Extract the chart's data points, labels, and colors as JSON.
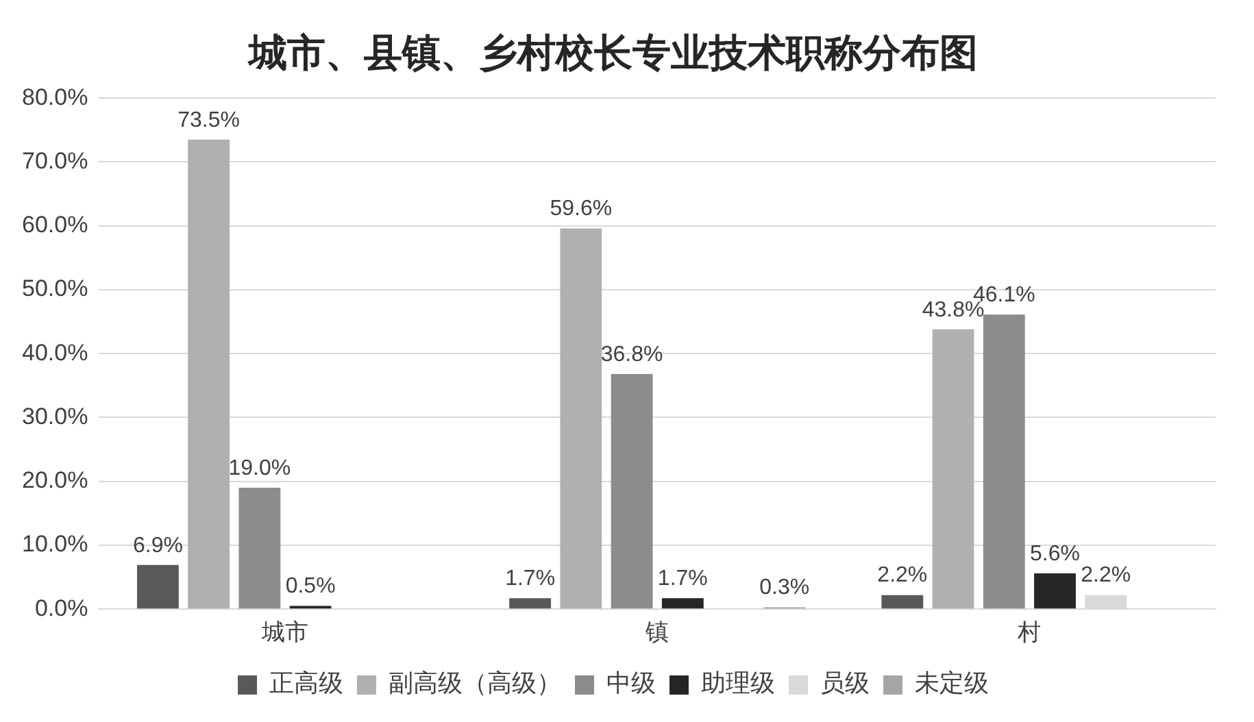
{
  "chart_data": {
    "type": "bar",
    "title": "城市、县镇、乡村校长专业技术职称分布图",
    "categories": [
      "城市",
      "镇",
      "村"
    ],
    "series": [
      {
        "name": "正高级",
        "color": "#595959",
        "values": [
          6.9,
          1.7,
          2.2
        ],
        "value_labels": [
          "6.9%",
          "1.7%",
          "2.2%"
        ]
      },
      {
        "name": "副高级（高级）",
        "color": "#b0b0b0",
        "values": [
          73.5,
          59.6,
          43.8
        ],
        "value_labels": [
          "73.5%",
          "59.6%",
          "43.8%"
        ]
      },
      {
        "name": "中级",
        "color": "#8c8c8c",
        "values": [
          19.0,
          36.8,
          46.1
        ],
        "value_labels": [
          "19.0%",
          "36.8%",
          "46.1%"
        ]
      },
      {
        "name": "助理级",
        "color": "#262626",
        "values": [
          0.5,
          1.7,
          5.6
        ],
        "value_labels": [
          "0.5%",
          "1.7%",
          "5.6%"
        ]
      },
      {
        "name": "员级",
        "color": "#d9d9d9",
        "values": [
          null,
          null,
          2.2
        ],
        "value_labels": [
          null,
          null,
          "2.2%"
        ]
      },
      {
        "name": "未定级",
        "color": "#a5a5a5",
        "values": [
          null,
          0.3,
          null
        ],
        "value_labels": [
          null,
          "0.3%",
          null
        ]
      }
    ],
    "ylim": [
      0,
      80
    ],
    "yticks": [
      {
        "value": 0,
        "label": "0.0%"
      },
      {
        "value": 10,
        "label": "10.0%"
      },
      {
        "value": 20,
        "label": "20.0%"
      },
      {
        "value": 30,
        "label": "30.0%"
      },
      {
        "value": 40,
        "label": "40.0%"
      },
      {
        "value": 50,
        "label": "50.0%"
      },
      {
        "value": 60,
        "label": "60.0%"
      },
      {
        "value": 70,
        "label": "70.0%"
      },
      {
        "value": 80,
        "label": "80.0%"
      }
    ],
    "grid": "y",
    "legend": "bottom"
  }
}
